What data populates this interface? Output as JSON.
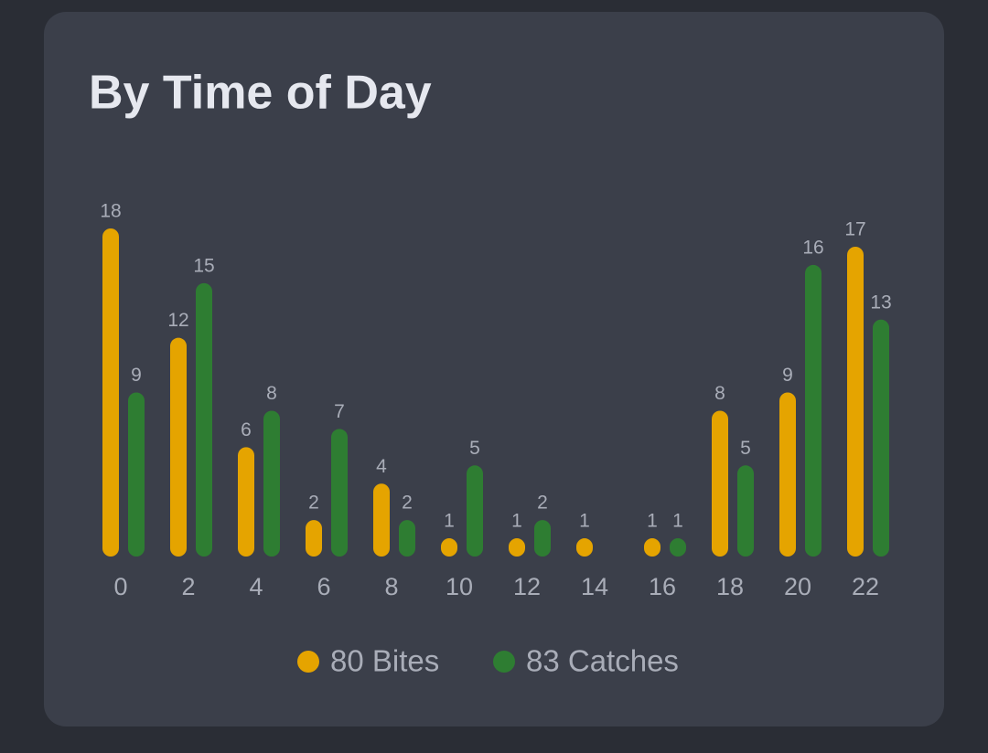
{
  "chart_data": {
    "type": "bar",
    "title": "By Time of Day",
    "categories": [
      "0",
      "2",
      "4",
      "6",
      "8",
      "10",
      "12",
      "14",
      "16",
      "18",
      "20",
      "22"
    ],
    "series": [
      {
        "name": "80 Bites",
        "color": "#e5a400",
        "values": [
          18,
          12,
          6,
          2,
          4,
          1,
          1,
          1,
          1,
          8,
          9,
          17
        ]
      },
      {
        "name": "83 Catches",
        "color": "#2e7d32",
        "values": [
          9,
          15,
          8,
          7,
          2,
          5,
          2,
          null,
          1,
          5,
          16,
          13
        ]
      }
    ]
  }
}
